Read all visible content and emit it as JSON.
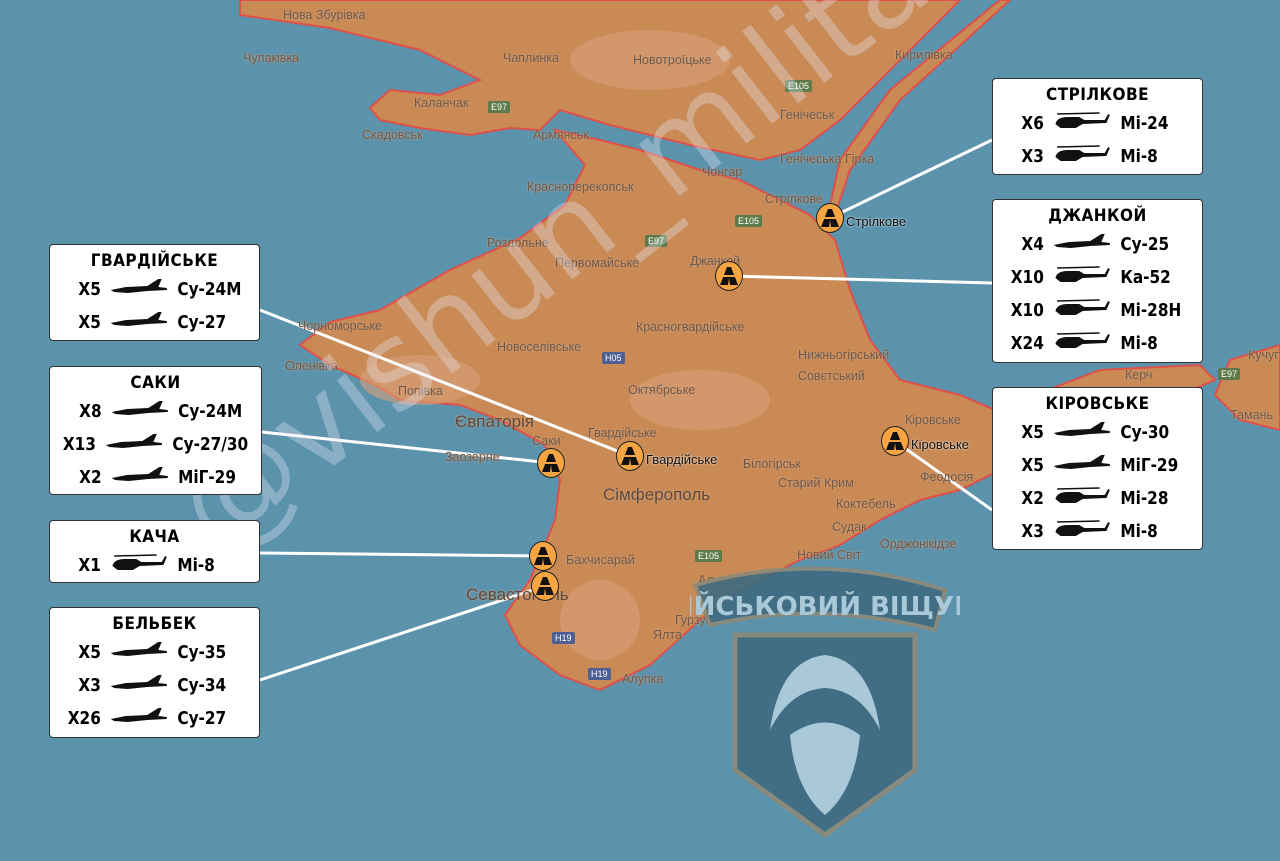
{
  "colors": {
    "sea": "#5b93ad",
    "land": "#c98a56",
    "border": "#e0504a",
    "marker": "#f7a443",
    "box": "#ffffff",
    "logo": "#3f6a80"
  },
  "map_labels": [
    "Нова Збурівка",
    "Чулаківка",
    "Чаплинка",
    "Новотроїцьке",
    "Кирилівка",
    "Каланчак",
    "Скадовськ",
    "Армянськ",
    "Генічеськ",
    "Генічеська Гірка",
    "Чонгар",
    "Красноперекопськ",
    "Роздольне",
    "Первомайське",
    "Джанкой",
    "Стрілкове",
    "Чорноморське",
    "Новоселівське",
    "Красногвардійське",
    "Нижньогірський",
    "Оленівка",
    "Попівка",
    "Совєтський",
    "Октябрське",
    "Євпаторія",
    "Саки",
    "Заозерне",
    "Гвардійське",
    "Білогірськ",
    "Сімферополь",
    "Старий Крим",
    "Кіровське",
    "Феодосія",
    "Коктебель",
    "Орджонікідзе",
    "Судак",
    "Новий Світ",
    "Бахчисарай",
    "Севастополь",
    "Алушта",
    "Гурзуф",
    "Ялта",
    "Алупка",
    "Керч",
    "Тамань",
    "Кучугури"
  ],
  "road_labels": [
    "E97",
    "E105",
    "E105",
    "E97",
    "H05",
    "E105",
    "H19",
    "H19",
    "E97"
  ],
  "airfields": [
    {
      "name": "ГВАРДІЙСЬКЕ",
      "map_label": "Гвардійське",
      "aircraft": [
        {
          "count": "X5",
          "type": "Су-24М",
          "icon": "jet-silhouette-icon"
        },
        {
          "count": "X5",
          "type": "Су-27",
          "icon": "jet-silhouette-icon"
        }
      ]
    },
    {
      "name": "САКИ",
      "map_label": "",
      "aircraft": [
        {
          "count": "X8",
          "type": "Су-24М",
          "icon": "jet-silhouette-icon"
        },
        {
          "count": "X13",
          "type": "Су-27/30",
          "icon": "jet-silhouette-icon"
        },
        {
          "count": "X2",
          "type": "МіГ-29",
          "icon": "jet-silhouette-icon"
        }
      ]
    },
    {
      "name": "КАЧА",
      "map_label": "",
      "aircraft": [
        {
          "count": "X1",
          "type": "Мі-8",
          "icon": "helicopter-silhouette-icon"
        }
      ]
    },
    {
      "name": "БЕЛЬБЕК",
      "map_label": "",
      "aircraft": [
        {
          "count": "X5",
          "type": "Су-35",
          "icon": "jet-silhouette-icon"
        },
        {
          "count": "X3",
          "type": "Су-34",
          "icon": "jet-silhouette-icon"
        },
        {
          "count": "X26",
          "type": "Су-27",
          "icon": "jet-silhouette-icon"
        }
      ]
    },
    {
      "name": "СТРІЛКОВЕ",
      "map_label": "Стрілкове",
      "aircraft": [
        {
          "count": "X6",
          "type": "Мі-24",
          "icon": "helicopter-silhouette-icon"
        },
        {
          "count": "X3",
          "type": "Мі-8",
          "icon": "helicopter-silhouette-icon"
        }
      ]
    },
    {
      "name": "ДЖАНКОЙ",
      "map_label": "",
      "aircraft": [
        {
          "count": "X4",
          "type": "Су-25",
          "icon": "jet-silhouette-icon"
        },
        {
          "count": "X10",
          "type": "Ка-52",
          "icon": "helicopter-silhouette-icon"
        },
        {
          "count": "X10",
          "type": "Мі-28Н",
          "icon": "helicopter-silhouette-icon"
        },
        {
          "count": "X24",
          "type": "Мі-8",
          "icon": "helicopter-silhouette-icon"
        }
      ]
    },
    {
      "name": "КІРОВСЬКЕ",
      "map_label": "Кіровське",
      "aircraft": [
        {
          "count": "X5",
          "type": "Су-30",
          "icon": "jet-silhouette-icon"
        },
        {
          "count": "X5",
          "type": "МіГ-29",
          "icon": "jet-silhouette-icon"
        },
        {
          "count": "X2",
          "type": "Мі-28",
          "icon": "helicopter-silhouette-icon"
        },
        {
          "count": "X3",
          "type": "Мі-8",
          "icon": "helicopter-silhouette-icon"
        }
      ]
    }
  ],
  "watermark": "@vishun_military",
  "logo": {
    "text": "ВІЙСЬКОВИЙ ВІЩУН",
    "icon": "bearded-seer-emblem-icon"
  }
}
